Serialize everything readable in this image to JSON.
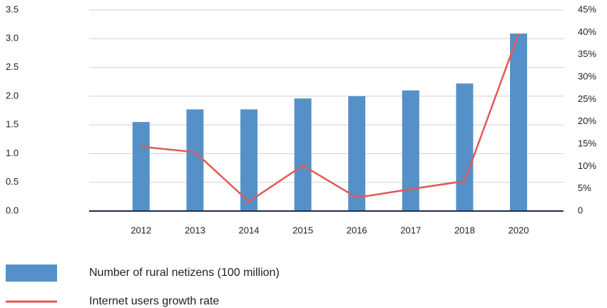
{
  "chart_data": {
    "type": "bar_line",
    "categories": [
      "2012",
      "2013",
      "2014",
      "2015",
      "2016",
      "2017",
      "2018",
      "2020"
    ],
    "series": [
      {
        "name": "Number of rural netizens (100 million)",
        "color": "#5591c8",
        "type": "bar",
        "values": [
          1.55,
          1.77,
          1.77,
          1.96,
          2.0,
          2.1,
          2.22,
          3.09
        ]
      },
      {
        "name": "Internet users growth rate",
        "color": "#e05a55",
        "type": "line",
        "axis": "y2",
        "values": [
          14.4,
          13.2,
          2.1,
          10.2,
          3.0,
          4.9,
          6.7,
          39.7
        ]
      }
    ],
    "ylim": [
      0,
      3.5
    ],
    "yticks": [
      {
        "value": 0,
        "label": "0.0"
      },
      0.5,
      {
        "value": 1,
        "label": "1.0"
      },
      1.5,
      {
        "value": 2,
        "label": "2.0"
      },
      2.5,
      {
        "value": 3,
        "label": "3.0"
      },
      3.5
    ],
    "y2lim": [
      0,
      45
    ],
    "y2ticks": [
      0,
      {
        "value": 5,
        "label": "5%"
      },
      {
        "value": 10,
        "label": "10%"
      },
      {
        "value": 15,
        "label": "15%"
      },
      {
        "value": 20,
        "label": "20%"
      },
      {
        "value": 25,
        "label": "25%"
      },
      {
        "value": 30,
        "label": "30%"
      },
      {
        "value": 35,
        "label": "35%"
      },
      {
        "value": 40,
        "label": "40%"
      },
      {
        "value": 45,
        "label": "45%"
      }
    ],
    "grid": true
  }
}
